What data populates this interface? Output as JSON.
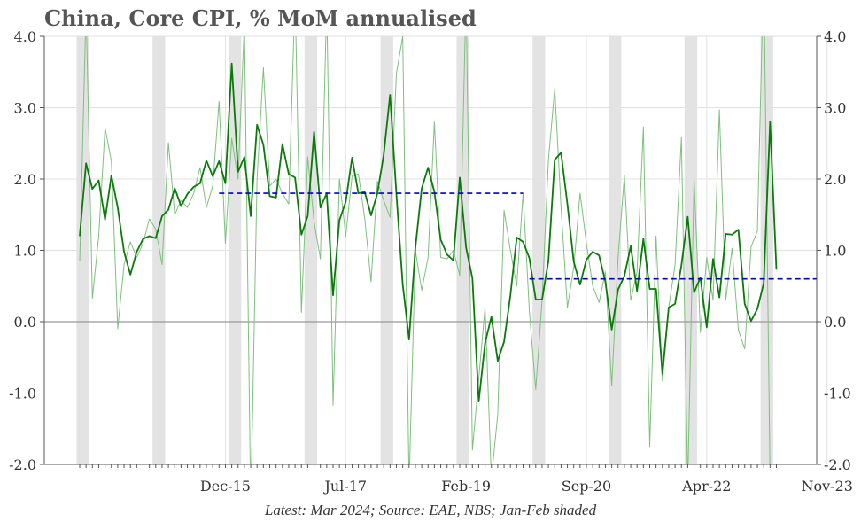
{
  "title": "China, Core CPI, % MoM annualised",
  "footer": "Latest: Mar 2024; Source: EAE, NBS; Jan-Feb shaded",
  "chart_data": {
    "type": "line",
    "start": "2014-01",
    "ylim": [
      -2.0,
      4.0
    ],
    "y_ticks": [
      "4.0",
      "3.0",
      "2.0",
      "1.0",
      "0.0",
      "-1.0",
      "-2.0"
    ],
    "y_tick_values": [
      4,
      3,
      2,
      1,
      0,
      -1,
      -2
    ],
    "x_tick_labels": [
      {
        "label": "Dec-15",
        "date": "2015-12"
      },
      {
        "label": "Jul-17",
        "date": "2017-07"
      },
      {
        "label": "Feb-19",
        "date": "2019-02"
      },
      {
        "label": "Sep-20",
        "date": "2020-09"
      },
      {
        "label": "Apr-22",
        "date": "2022-04"
      },
      {
        "label": "Nov-23",
        "date": "2023-11"
      }
    ],
    "grid": true,
    "shaded_periods": "Jan-Feb",
    "colors": {
      "monthly": "#7fbf7f",
      "smoothed": "#0a7a0a",
      "average": "#0000cc",
      "shade": "#e3e3e3",
      "zero": "#999999"
    },
    "monthly_series": [
      0.85,
      4.4,
      0.33,
      1.2,
      2.72,
      2.25,
      -0.1,
      0.8,
      1.12,
      0.9,
      1.1,
      1.44,
      1.3,
      0.8,
      2.51,
      1.5,
      1.7,
      1.6,
      1.8,
      2.16,
      1.6,
      1.9,
      3.09,
      1.1,
      2.57,
      2.0,
      4.2,
      -2.6,
      2.0,
      3.56,
      1.9,
      2.0,
      1.8,
      1.65,
      4.6,
      0.13,
      2.31,
      1.4,
      0.88,
      4.5,
      -1.17,
      2.0,
      1.2,
      2.04,
      2.07,
      1.45,
      0.56,
      1.97,
      1.7,
      1.46,
      3.48,
      4.0,
      -2.3,
      1.0,
      0.44,
      0.9,
      2.8,
      0.9,
      0.88,
      1.0,
      0.65,
      4.6,
      -1.8,
      -0.8,
      0.2,
      -2.2,
      -1.3,
      1.56,
      1.0,
      0.5,
      1.8,
      0.14,
      -0.95,
      0.3,
      2.26,
      3.27,
      1.6,
      0.2,
      0.76,
      1.8,
      1.1,
      0.5,
      0.27,
      0.7,
      -0.9,
      0.9,
      2.05,
      0.3,
      0.7,
      2.73,
      -1.75,
      1.2,
      -0.83,
      0.2,
      0.8,
      2.58,
      -2.3,
      2.0,
      -0.15,
      0.9,
      0.3,
      2.97,
      0.3,
      1.03,
      -0.12,
      -0.38,
      1.05,
      1.27,
      5.0,
      -2.2
    ],
    "smoothed_series": [
      1.2,
      2.22,
      1.86,
      1.98,
      1.43,
      2.05,
      1.6,
      0.98,
      0.66,
      0.98,
      1.16,
      1.2,
      1.17,
      1.48,
      1.57,
      1.87,
      1.62,
      1.79,
      1.89,
      1.94,
      2.26,
      2.04,
      2.25,
      1.94,
      3.62,
      2.1,
      2.31,
      1.48,
      2.76,
      2.48,
      1.76,
      1.74,
      2.49,
      2.07,
      2.02,
      1.22,
      1.48,
      2.66,
      1.6,
      1.8,
      0.37,
      1.42,
      1.68,
      2.3,
      1.8,
      1.82,
      1.49,
      1.8,
      2.34,
      3.18,
      1.79,
      0.52,
      -0.25,
      1.04,
      1.87,
      2.16,
      1.82,
      1.15,
      0.94,
      0.86,
      2.02,
      1.04,
      0.61,
      -1.12,
      -0.3,
      0.07,
      -0.55,
      -0.28,
      0.37,
      1.18,
      1.12,
      0.89,
      0.31,
      0.31,
      0.85,
      2.27,
      2.37,
      1.65,
      0.84,
      0.52,
      0.87,
      0.98,
      0.93,
      0.56,
      -0.11,
      0.45,
      0.64,
      1.06,
      0.43,
      1.16,
      0.46,
      0.46,
      -0.73,
      0.2,
      0.25,
      0.79,
      1.47,
      0.41,
      0.62,
      -0.08,
      0.88,
      0.34,
      1.23,
      1.22,
      1.29,
      0.25,
      0.01,
      0.18,
      0.54,
      2.8,
      0.73
    ],
    "averages": [
      {
        "from": "2015-11",
        "to": "2019-11",
        "value": 1.8
      },
      {
        "from": "2019-12",
        "to": "2023-12",
        "value": 0.6
      }
    ]
  }
}
